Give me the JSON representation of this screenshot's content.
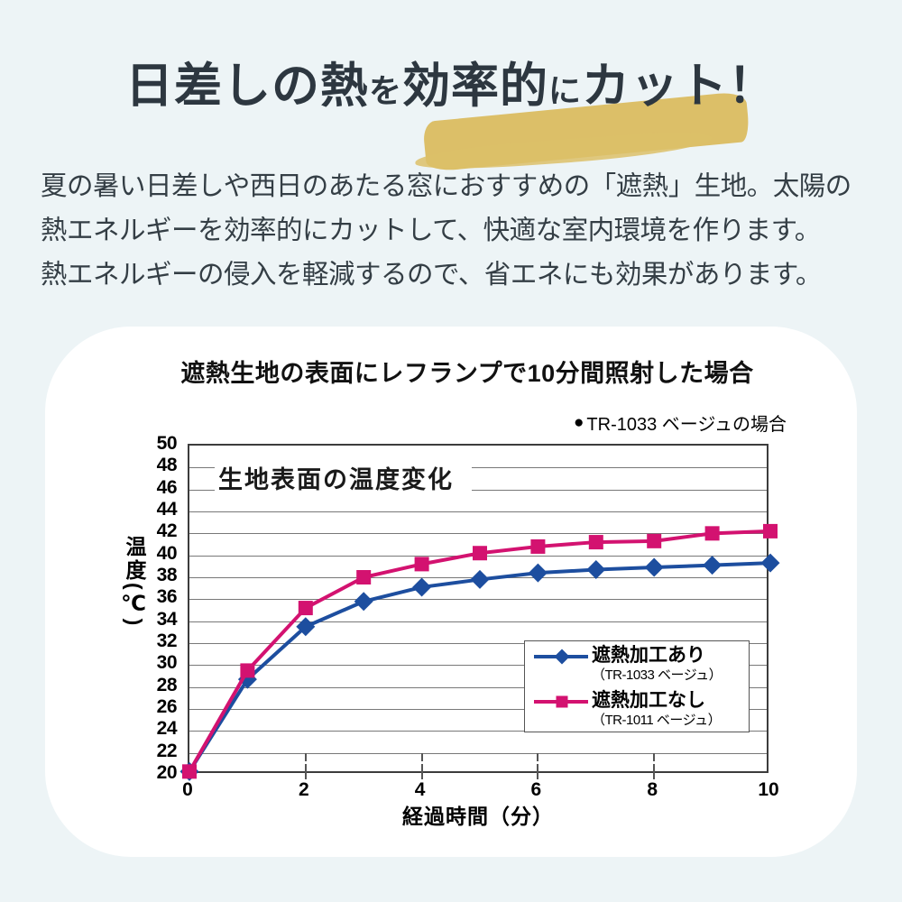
{
  "page": {
    "background_color": "#edf4f6"
  },
  "title": {
    "part1": "日差しの熱",
    "part2": "を",
    "part3": "効率的",
    "part4": "に",
    "part5": "カット！",
    "highlight_color": "#dcbf68"
  },
  "intro": {
    "lines": [
      "夏の暑い日差しや西日のあたる窓におすすめの「遮熱」生地。太陽の",
      "熱エネルギーを効率的にカットして、快適な室内環境を作ります。",
      "熱エネルギーの侵入を軽減するので、省エネにも効果があります。"
    ]
  },
  "chart_data": {
    "type": "line",
    "title": "遮熱生地の表面にレフランプで10分間照射した場合",
    "inner_title": "生地表面の温度変化",
    "annotation_bullet": "●",
    "annotation": "TR-1033 ベージュの場合",
    "xlabel": "経過時間（分）",
    "ylabel": "温度(℃)",
    "x": [
      0,
      1,
      2,
      3,
      4,
      5,
      6,
      7,
      8,
      9,
      10
    ],
    "xlim": [
      0,
      10
    ],
    "ylim": [
      20,
      50
    ],
    "xticks": [
      0,
      2,
      4,
      6,
      8,
      10
    ],
    "ytick_step": 2,
    "grid": true,
    "legend_position": "inside-bottom-right",
    "series": [
      {
        "name": "遮熱加工あり",
        "subtitle": "（TR-1033 ベージュ）",
        "color": "#1d4e9f",
        "marker": "diamond",
        "values": [
          20.3,
          28.7,
          33.5,
          35.8,
          37.1,
          37.8,
          38.4,
          38.7,
          38.9,
          39.1,
          39.3
        ]
      },
      {
        "name": "遮熱加工なし",
        "subtitle": "（TR-1011 ベージュ）",
        "color": "#d31270",
        "marker": "square",
        "values": [
          20.3,
          29.5,
          35.2,
          38.0,
          39.2,
          40.2,
          40.8,
          41.2,
          41.3,
          42.0,
          42.2
        ]
      }
    ]
  }
}
